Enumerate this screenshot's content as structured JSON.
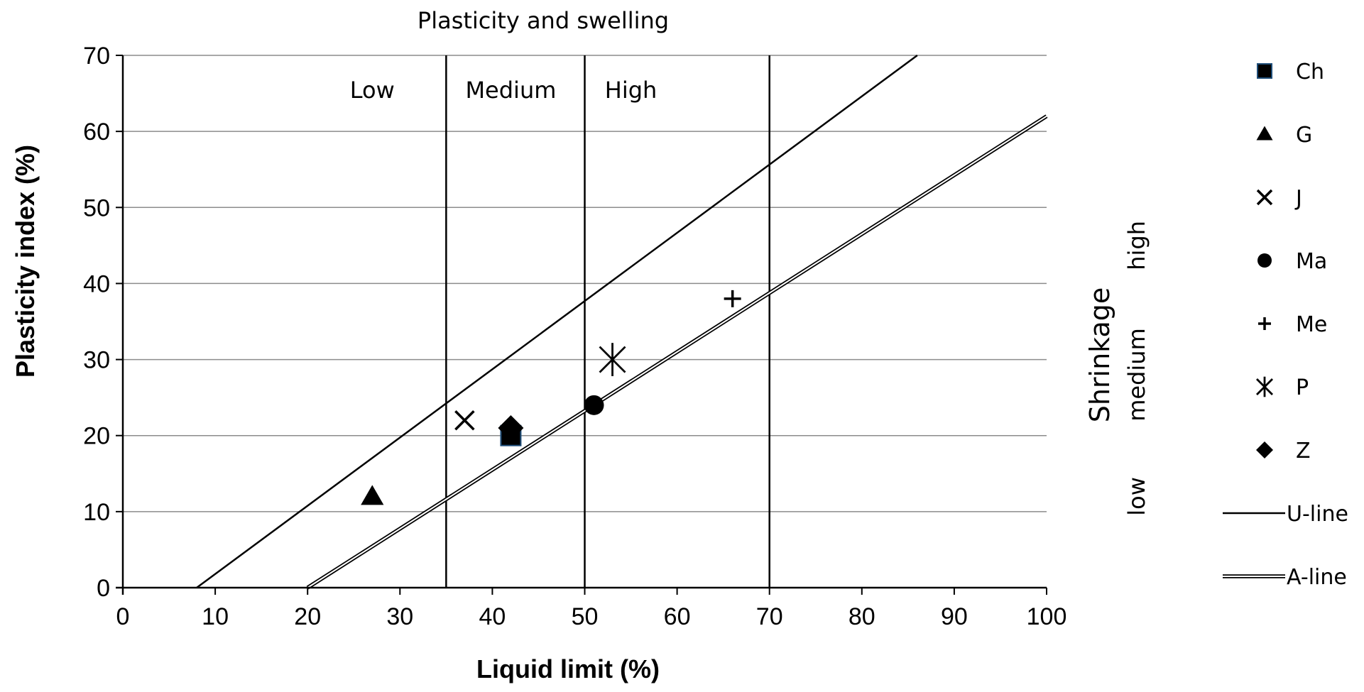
{
  "chart_data": {
    "type": "scatter",
    "title": "Plasticity and swelling",
    "xlabel": "Liquid limit (%)",
    "ylabel": "Plasticity index (%)",
    "xlim": [
      0,
      100
    ],
    "ylim": [
      0,
      70
    ],
    "x_ticks": [
      0,
      10,
      20,
      30,
      40,
      50,
      60,
      70,
      80,
      90,
      100
    ],
    "y_ticks": [
      0,
      10,
      20,
      30,
      40,
      50,
      60,
      70
    ],
    "grid": "horizontal",
    "series": [
      {
        "name": "Ch",
        "marker": "square",
        "x": 42,
        "y": 20
      },
      {
        "name": "G",
        "marker": "triangle",
        "x": 27,
        "y": 12
      },
      {
        "name": "J",
        "marker": "x",
        "x": 37,
        "y": 22
      },
      {
        "name": "Ma",
        "marker": "circle",
        "x": 51,
        "y": 24
      },
      {
        "name": "Me",
        "marker": "plus",
        "x": 66,
        "y": 38
      },
      {
        "name": "P",
        "marker": "asterisk",
        "x": 53,
        "y": 30
      },
      {
        "name": "Z",
        "marker": "diamond",
        "x": 42,
        "y": 21
      }
    ],
    "reference_lines": [
      {
        "name": "U-line",
        "style": "solid",
        "points": [
          [
            8,
            0
          ],
          [
            86,
            70
          ]
        ]
      },
      {
        "name": "A-line",
        "style": "double",
        "points": [
          [
            20,
            0
          ],
          [
            100,
            62
          ]
        ]
      }
    ],
    "liquid_limit_boundaries": [
      {
        "x_bottom": 35,
        "x_top": 35
      },
      {
        "x_bottom": 50,
        "x_top": 50
      },
      {
        "x_bottom": 70,
        "x_top": 70
      }
    ],
    "zones": [
      {
        "label": "Low",
        "x": 27
      },
      {
        "label": "Medium",
        "x": 42
      },
      {
        "label": "High",
        "x": 55
      }
    ],
    "shrinkage": {
      "title": "Shrinkage",
      "levels": [
        {
          "label": "low",
          "y": 12
        },
        {
          "label": "medium",
          "y": 28
        },
        {
          "label": "high",
          "y": 45
        }
      ]
    },
    "legend": {
      "placement": "right",
      "entries": [
        "Ch",
        "G",
        "J",
        "Ma",
        "Me",
        "P",
        "Z",
        "U-line",
        "A-line"
      ]
    }
  }
}
